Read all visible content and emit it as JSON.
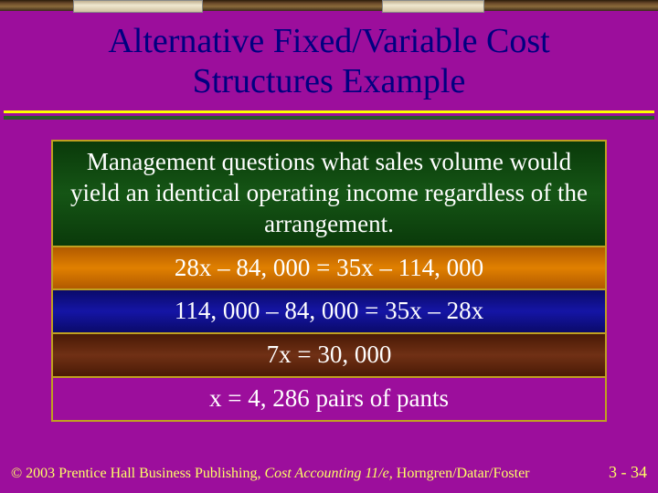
{
  "title_line1": "Alternative Fixed/Variable Cost",
  "title_line2": "Structures Example",
  "rows": {
    "intro": "Management questions what sales volume would yield an identical operating income regardless of the arrangement.",
    "eq1": "28x – 84, 000 = 35x – 114, 000",
    "eq2": "114, 000 – 84, 000 = 35x – 28x",
    "eq3": "7x = 30, 000",
    "eq4": "x = 4, 286 pairs of pants"
  },
  "footer": {
    "copyright_prefix": "© 2003 Prentice Hall Business Publishing, ",
    "book_title": "Cost Accounting 11/e,",
    "authors": " Horngren/Datar/Foster",
    "page": "3 - 34"
  },
  "colors": {
    "background": "#9c0e9c",
    "title_text": "#000080",
    "body_text": "#ffffff",
    "footer_text": "#ffff66",
    "box_border": "#c0a020",
    "rule_top": "#ffff00",
    "rule_bottom": "#2a5a2a"
  }
}
